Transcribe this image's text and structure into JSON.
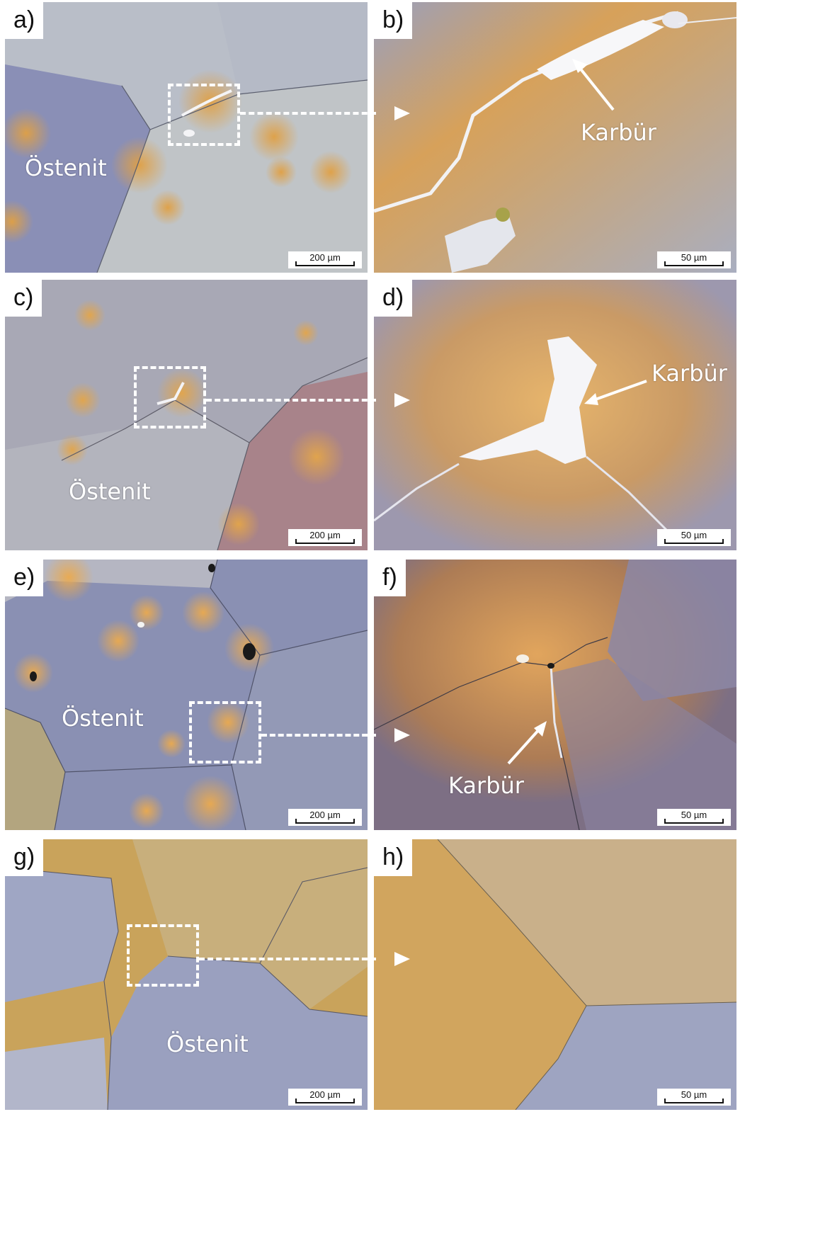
{
  "panels": {
    "a": {
      "letter": "a)",
      "label": "Östenit",
      "scale": "200 µm"
    },
    "b": {
      "letter": "b)",
      "label": "Karbür",
      "scale": "50 µm"
    },
    "c": {
      "letter": "c)",
      "label": "Östenit",
      "scale": "200 µm"
    },
    "d": {
      "letter": "d)",
      "label": "Karbür",
      "scale": "50 µm"
    },
    "e": {
      "letter": "e)",
      "label": "Östenit",
      "scale": "200 µm"
    },
    "f": {
      "letter": "f)",
      "label": "Karbür",
      "scale": "50 µm"
    },
    "g": {
      "letter": "g)",
      "label": "Östenit",
      "scale": "200 µm"
    },
    "h": {
      "letter": "h)",
      "scale": "50 µm"
    }
  },
  "colors": {
    "austenite_blue": "#8f97b8",
    "austenite_grey": "#b2b7c2",
    "tint_orange": "#d59a4a",
    "carbide_white": "#f3f3f6"
  }
}
